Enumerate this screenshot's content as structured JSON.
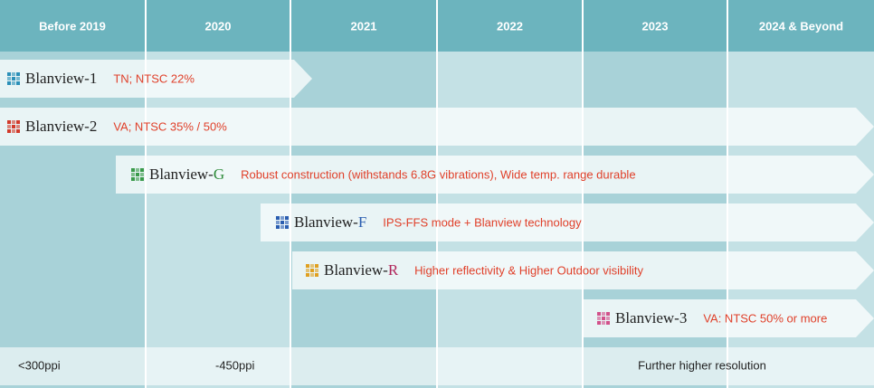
{
  "columns": [
    "Before 2019",
    "2020",
    "2021",
    "2022",
    "2023",
    "2024 & Beyond"
  ],
  "products": [
    {
      "name": "Blanview-",
      "variant": "1",
      "variant_color": "#222222",
      "description": "TN; NTSC 22%"
    },
    {
      "name": "Blanview-",
      "variant": "2",
      "variant_color": "#222222",
      "description": "VA; NTSC 35% / 50%"
    },
    {
      "name": "Blanview-",
      "variant": "G",
      "variant_color": "#2e8b3a",
      "description": "Robust construction (withstands 6.8G vibrations), Wide temp. range durable"
    },
    {
      "name": "Blanview-",
      "variant": "F",
      "variant_color": "#2a5db0",
      "description": "IPS-FFS mode + Blanview technology"
    },
    {
      "name": "Blanview-",
      "variant": "R",
      "variant_color": "#b0245a",
      "description": "Higher reflectivity & Higher Outdoor visibility"
    },
    {
      "name": "Blanview-",
      "variant": "3",
      "variant_color": "#222222",
      "description": "VA: NTSC 50% or more"
    }
  ],
  "resolution": [
    "<300ppi",
    "-450ppi",
    "Further higher resolution"
  ]
}
